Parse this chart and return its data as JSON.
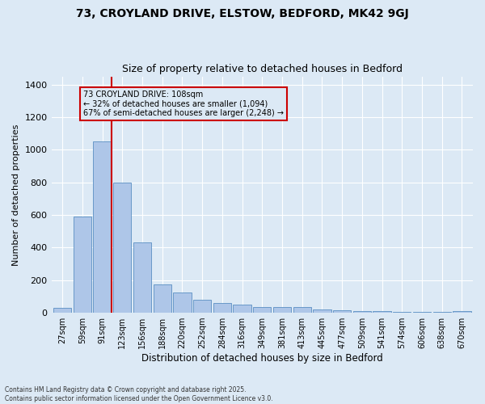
{
  "title_line1": "73, CROYLAND DRIVE, ELSTOW, BEDFORD, MK42 9GJ",
  "title_line2": "Size of property relative to detached houses in Bedford",
  "xlabel": "Distribution of detached houses by size in Bedford",
  "ylabel": "Number of detached properties",
  "categories": [
    "27sqm",
    "59sqm",
    "91sqm",
    "123sqm",
    "156sqm",
    "188sqm",
    "220sqm",
    "252sqm",
    "284sqm",
    "316sqm",
    "349sqm",
    "381sqm",
    "413sqm",
    "445sqm",
    "477sqm",
    "509sqm",
    "541sqm",
    "574sqm",
    "606sqm",
    "638sqm",
    "670sqm"
  ],
  "values": [
    30,
    590,
    1050,
    800,
    430,
    175,
    125,
    80,
    60,
    50,
    35,
    35,
    35,
    20,
    15,
    10,
    8,
    5,
    5,
    3,
    8
  ],
  "bar_color": "#aec6e8",
  "bar_edge_color": "#5a8fc2",
  "bg_color": "#dce9f5",
  "grid_color": "#ffffff",
  "vline_color": "#cc0000",
  "annotation_text": "73 CROYLAND DRIVE: 108sqm\n← 32% of detached houses are smaller (1,094)\n67% of semi-detached houses are larger (2,248) →",
  "annotation_box_color": "#cc0000",
  "ylim": [
    0,
    1450
  ],
  "yticks": [
    0,
    200,
    400,
    600,
    800,
    1000,
    1200,
    1400
  ],
  "footer_line1": "Contains HM Land Registry data © Crown copyright and database right 2025.",
  "footer_line2": "Contains public sector information licensed under the Open Government Licence v3.0."
}
